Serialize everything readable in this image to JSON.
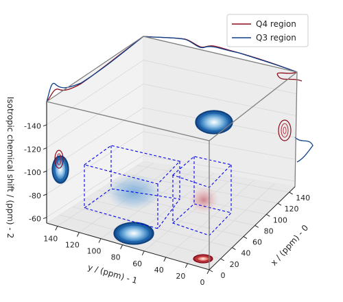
{
  "chart_data": {
    "type": "scatter",
    "projection": "3d",
    "xlabel": "x / (ppm) - 0",
    "ylabel": "y / (ppm) - 1",
    "zlabel": "Isotropic chemical shift / (ppm) - 2",
    "xlim": [
      0,
      150
    ],
    "ylim": [
      0,
      150
    ],
    "zlim": [
      -160,
      -55
    ],
    "x_ticks": [
      0,
      20,
      40,
      60,
      80,
      100,
      120,
      140
    ],
    "y_ticks": [
      0,
      20,
      40,
      60,
      80,
      100,
      120,
      140
    ],
    "z_ticks": [
      -60,
      -80,
      -100,
      -120,
      -140
    ],
    "grid": true,
    "legend_position": "top-right",
    "series": [
      {
        "name": "Q4 region",
        "color": "#8b0a1a",
        "center": {
          "x": 30,
          "y": 20,
          "z": -110
        },
        "box": {
          "x": [
            0,
            60
          ],
          "y": [
            0,
            35
          ],
          "z": [
            -145,
            -80
          ]
        }
      },
      {
        "name": "Q3 region",
        "color": "#0d3f8a",
        "center": {
          "x": 55,
          "y": 100,
          "z": -100
        },
        "box": {
          "x": [
            30,
            80
          ],
          "y": [
            80,
            125
          ],
          "z": [
            -125,
            -75
          ]
        }
      }
    ]
  }
}
